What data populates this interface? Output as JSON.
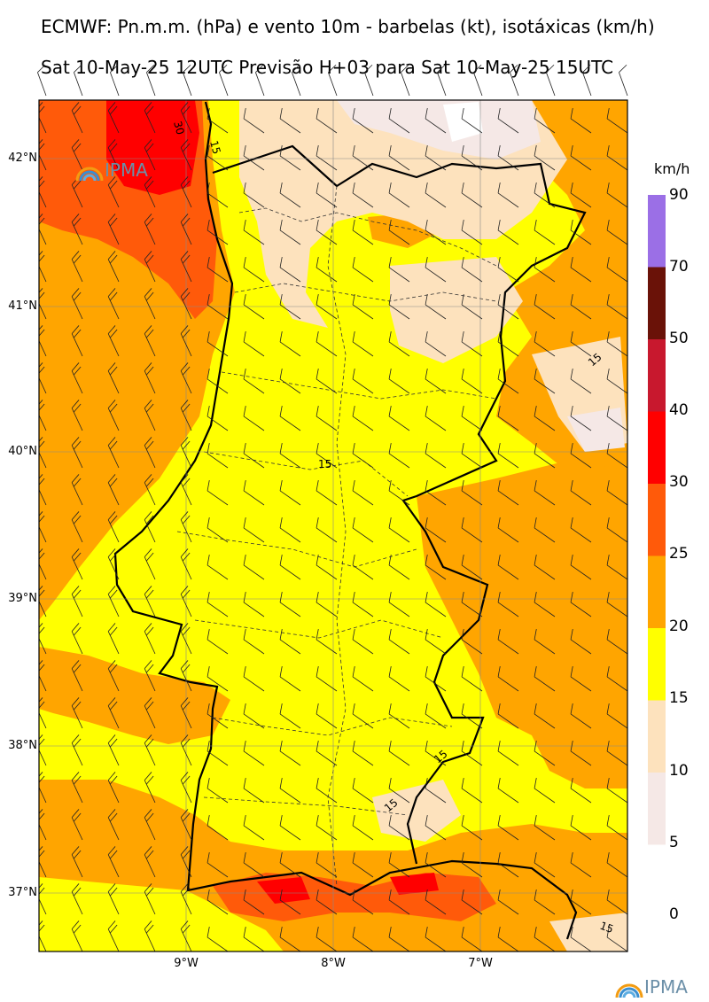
{
  "title_line1": "ECMWF: Pn.m.m. (hPa) e vento 10m - barbelas (kt), isotáxicas (km/h)",
  "title_line2": "Sat 10-May-25 12UTC Previsão H+03 para Sat 10-May-25 15UTC",
  "lat_labels": [
    "42°N",
    "41°N",
    "40°N",
    "39°N",
    "38°N",
    "37°N"
  ],
  "lon_labels": [
    "9°W",
    "8°W",
    "7°W"
  ],
  "colorbar": {
    "unit": "km/h",
    "levels": [
      "90",
      "70",
      "50",
      "40",
      "30",
      "25",
      "20",
      "15",
      "10",
      "5",
      "0"
    ],
    "colors": [
      "#9b6fe6",
      "#6a1208",
      "#c8182e",
      "#ff0000",
      "#ff5a0a",
      "#ffa500",
      "#ffff00",
      "#fde2bd",
      "#f5e8e6"
    ]
  },
  "contour_labels": [
    "30",
    "15",
    "15",
    "15",
    "15",
    "15",
    "15"
  ],
  "logo_text": "IPMA",
  "map_colors": {
    "yellow": "#ffff00",
    "orange": "#ffa500",
    "dark_orange": "#ff5a0a",
    "red": "#ff0000",
    "light_peach": "#fde2bd",
    "pale": "#f5e8e6"
  }
}
